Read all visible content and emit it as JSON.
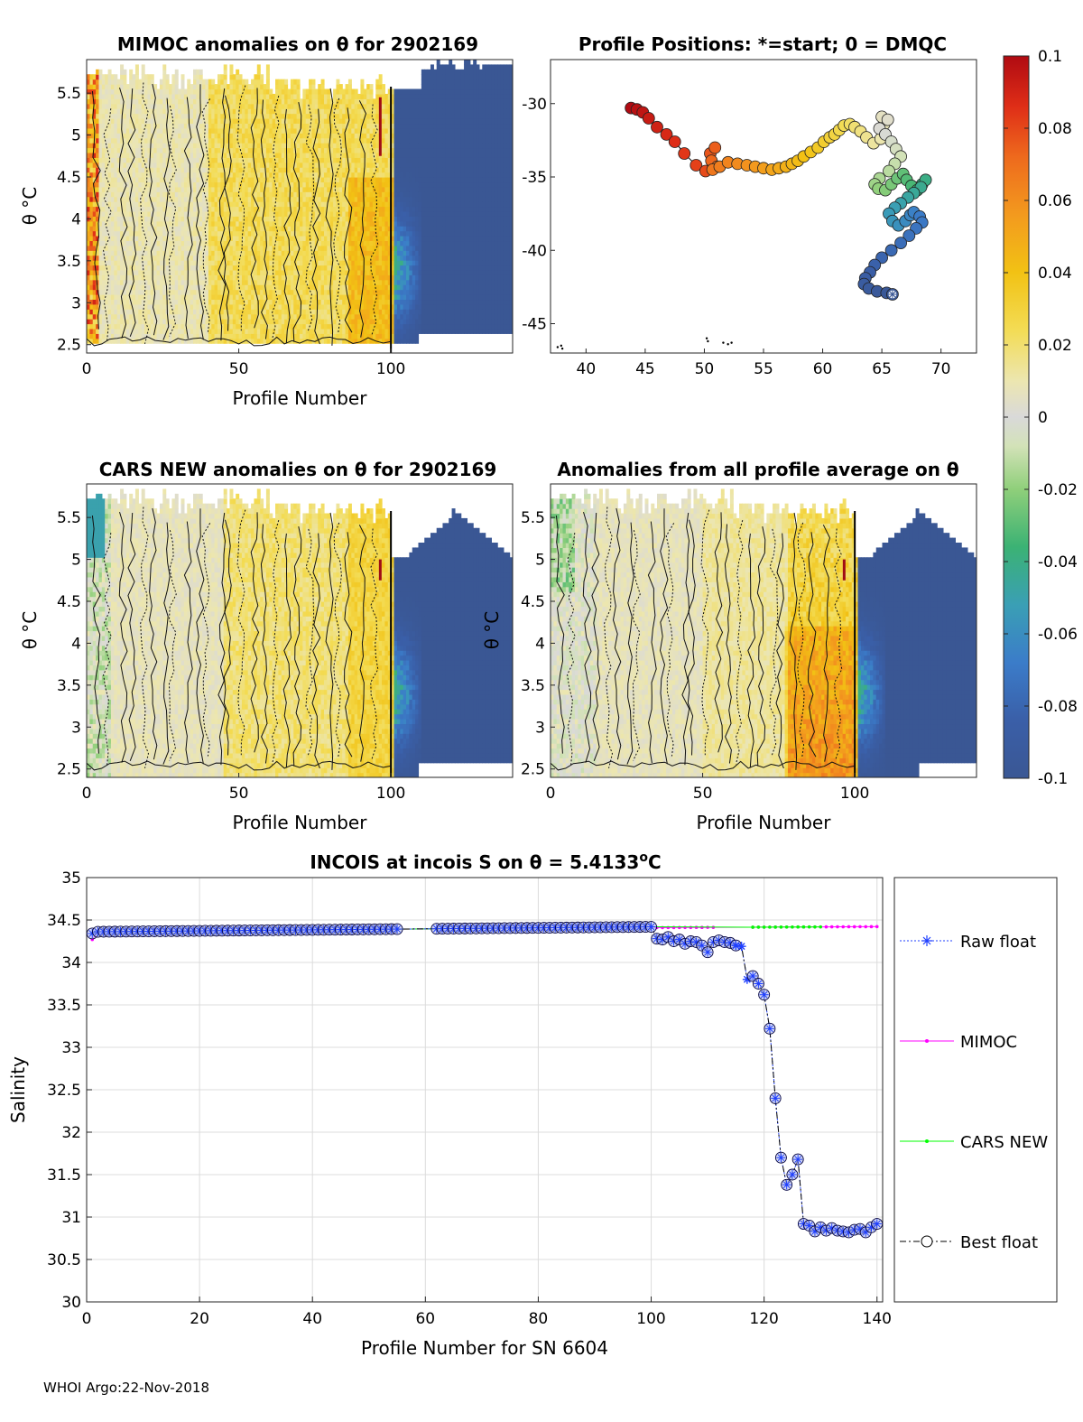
{
  "footer": "WHOI Argo:22-Nov-2018",
  "colorbar": {
    "ticks": [
      "0.1",
      "0.08",
      "0.06",
      "0.04",
      "0.02",
      "0",
      "-0.02",
      "-0.04",
      "-0.06",
      "-0.08",
      "-0.1"
    ],
    "range": [
      -0.1,
      0.1
    ]
  },
  "colors": {
    "raw": "#1f3fff",
    "mimoc": "#ff00ff",
    "cars": "#00ff00",
    "best": "#000080",
    "field_dark": "#3a5794",
    "field_yellow": "#f0d84a",
    "field_orange": "#f2a52a",
    "field_gray": "#d8d8d8",
    "field_green": "#5cbf75"
  },
  "chart_data": [
    {
      "id": "mimoc",
      "type": "heatmap",
      "title": "MIMOC anomalies on θ  for 2902169",
      "xlabel": "Profile Number",
      "ylabel": "θ °C",
      "xlim": [
        0,
        140
      ],
      "ylim": [
        2.4,
        5.9
      ],
      "xticks": [
        "0",
        "50",
        "100"
      ],
      "yticks": [
        "2.5",
        "3",
        "3.5",
        "4",
        "4.5",
        "5",
        "5.5"
      ]
    },
    {
      "id": "positions",
      "type": "scatter",
      "title": "Profile Positions: *=start; 0 = DMQC",
      "xlim": [
        37,
        73
      ],
      "ylim": [
        -47,
        -27
      ],
      "xticks": [
        "40",
        "45",
        "50",
        "55",
        "60",
        "65",
        "70"
      ],
      "yticks": [
        "-30",
        "-35",
        "-40",
        "-45"
      ],
      "track_lon": [
        43.8,
        44.3,
        44.8,
        45.3,
        46.0,
        46.8,
        47.5,
        48.3,
        49.3,
        50.1,
        50.5,
        50.9,
        50.6,
        51.1,
        50.7,
        51.3,
        52.0,
        52.8,
        53.6,
        54.3,
        55.0,
        55.7,
        56.3,
        56.9,
        57.4,
        57.9,
        58.4,
        59.0,
        59.6,
        60.1,
        60.6,
        61.0,
        61.4,
        61.8,
        62.3,
        62.7,
        63.2,
        63.7,
        64.3,
        64.9,
        65.2,
        65.0,
        65.5,
        64.8,
        65.3,
        65.8,
        66.2,
        66.6,
        66.1,
        65.6,
        64.8,
        64.4,
        64.7,
        65.3,
        65.8,
        66.3,
        66.8,
        67.1,
        67.5,
        68.0,
        68.4,
        68.7,
        68.3,
        67.7,
        67.2,
        66.6,
        66.1,
        65.6,
        65.9,
        66.4,
        67.0,
        67.4,
        67.7,
        68.2,
        68.4,
        67.9,
        67.3,
        66.6,
        65.8,
        65.0,
        64.4,
        64.0,
        63.6,
        63.5,
        63.9,
        64.6,
        65.4,
        65.9
      ],
      "track_lat": [
        -30.3,
        -30.4,
        -30.6,
        -31.0,
        -31.6,
        -32.1,
        -32.6,
        -33.4,
        -34.2,
        -34.6,
        -33.4,
        -33.0,
        -33.9,
        -34.3,
        -34.5,
        -34.3,
        -34.0,
        -34.1,
        -34.2,
        -34.3,
        -34.4,
        -34.5,
        -34.4,
        -34.3,
        -34.1,
        -33.9,
        -33.6,
        -33.3,
        -33.0,
        -32.6,
        -32.3,
        -32.1,
        -31.8,
        -31.5,
        -31.4,
        -31.6,
        -31.9,
        -32.3,
        -32.7,
        -32.4,
        -31.4,
        -30.9,
        -31.1,
        -31.7,
        -32.1,
        -32.6,
        -33.1,
        -33.6,
        -34.1,
        -34.6,
        -35.1,
        -35.5,
        -35.8,
        -35.9,
        -35.5,
        -35.1,
        -34.8,
        -35.2,
        -35.6,
        -35.9,
        -35.5,
        -35.2,
        -35.7,
        -36.1,
        -36.4,
        -36.8,
        -37.1,
        -37.5,
        -38.0,
        -38.3,
        -38.0,
        -37.6,
        -37.4,
        -37.7,
        -38.1,
        -38.5,
        -39.0,
        -39.5,
        -40.0,
        -40.5,
        -41.0,
        -41.5,
        -41.9,
        -42.3,
        -42.6,
        -42.8,
        -42.9,
        -43.0
      ],
      "coast": [
        [
          37.6,
          -46.6
        ],
        [
          37.9,
          -46.5
        ],
        [
          38.0,
          -46.7
        ],
        [
          50.2,
          -46.0
        ],
        [
          50.3,
          -46.2
        ],
        [
          51.6,
          -46.3
        ],
        [
          52.0,
          -46.4
        ],
        [
          52.3,
          -46.3
        ]
      ]
    },
    {
      "id": "cars",
      "type": "heatmap",
      "title": "CARS NEW anomalies on θ for 2902169",
      "xlabel": "Profile Number",
      "ylabel": "θ °C",
      "xlim": [
        0,
        140
      ],
      "ylim": [
        2.4,
        5.9
      ],
      "xticks": [
        "0",
        "50",
        "100"
      ],
      "yticks": [
        "2.5",
        "3",
        "3.5",
        "4",
        "4.5",
        "5",
        "5.5"
      ]
    },
    {
      "id": "avg",
      "type": "heatmap",
      "title": "Anomalies from all profile average on θ",
      "xlabel": "Profile Number",
      "ylabel": "θ °C",
      "xlim": [
        0,
        140
      ],
      "ylim": [
        2.4,
        5.9
      ],
      "xticks": [
        "0",
        "50",
        "100"
      ],
      "yticks": [
        "2.5",
        "3",
        "3.5",
        "4",
        "4.5",
        "5",
        "5.5"
      ]
    },
    {
      "id": "salinity",
      "type": "line",
      "title_prefix": "INCOIS at incois S on θ = 5.4133",
      "title_sup": "o",
      "title_suffix": "C",
      "xlabel": "Profile Number for SN 6604",
      "ylabel": "Salinity",
      "xlim": [
        0,
        141
      ],
      "ylim": [
        30,
        35
      ],
      "xticks": [
        "0",
        "20",
        "40",
        "60",
        "80",
        "100",
        "120",
        "140"
      ],
      "yticks": [
        "30",
        "30.5",
        "31",
        "31.5",
        "32",
        "32.5",
        "33",
        "33.5",
        "34",
        "34.5",
        "35"
      ],
      "legend": [
        "Raw float",
        "MIMOC",
        "CARS NEW",
        "Best float"
      ],
      "gap_profiles": [
        55,
        62
      ],
      "gap_profiles_model": [
        112,
        118
      ],
      "float_late": [
        [
          101,
          34.28
        ],
        [
          102,
          34.27
        ],
        [
          103,
          34.3
        ],
        [
          104,
          34.25
        ],
        [
          105,
          34.27
        ],
        [
          106,
          34.22
        ],
        [
          107,
          34.25
        ],
        [
          108,
          34.24
        ],
        [
          109,
          34.2
        ],
        [
          110,
          34.12
        ],
        [
          111,
          34.24
        ],
        [
          112,
          34.26
        ],
        [
          113,
          34.24
        ],
        [
          114,
          34.23
        ],
        [
          115,
          34.2
        ],
        [
          116,
          34.19
        ],
        [
          117,
          33.8
        ],
        [
          118,
          33.84
        ],
        [
          119,
          33.75
        ],
        [
          120,
          33.62
        ],
        [
          121,
          33.22
        ],
        [
          122,
          32.4
        ],
        [
          123,
          31.7
        ],
        [
          124,
          31.38
        ],
        [
          125,
          31.5
        ],
        [
          126,
          31.68
        ],
        [
          127,
          30.92
        ],
        [
          128,
          30.9
        ],
        [
          129,
          30.83
        ],
        [
          130,
          30.88
        ],
        [
          131,
          30.84
        ],
        [
          132,
          30.87
        ],
        [
          133,
          30.84
        ],
        [
          134,
          30.83
        ],
        [
          135,
          30.82
        ],
        [
          136,
          30.85
        ],
        [
          137,
          30.86
        ],
        [
          138,
          30.82
        ],
        [
          139,
          30.88
        ],
        [
          140,
          30.92
        ]
      ]
    }
  ]
}
